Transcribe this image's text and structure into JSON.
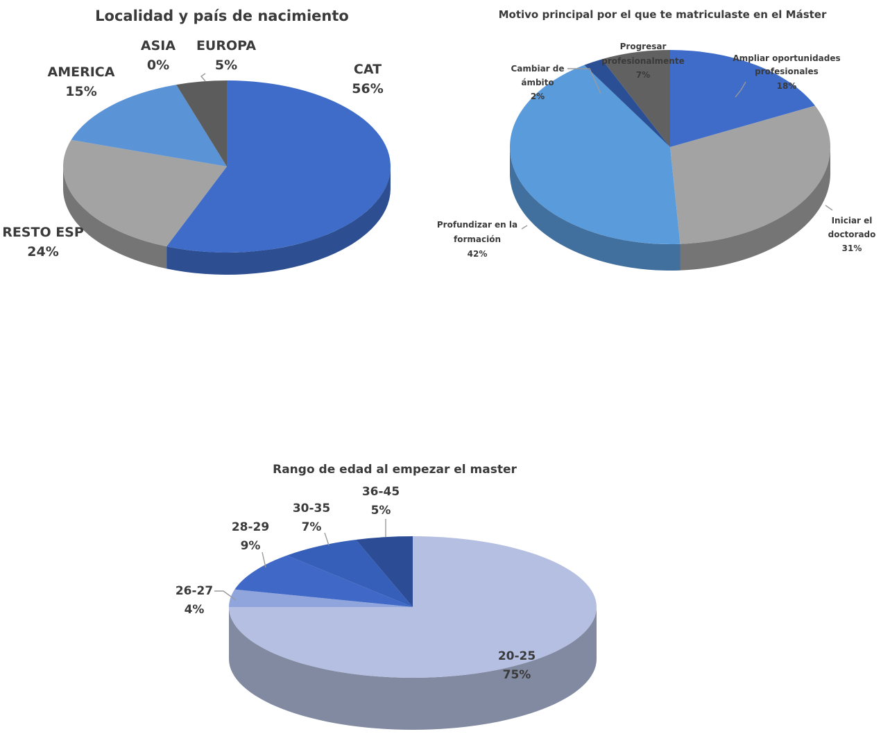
{
  "chart_data": [
    {
      "type": "pie",
      "title": "Localidad y país de nacimiento",
      "categories": [
        "CAT",
        "RESTO ESP",
        "AMERICA",
        "ASIA",
        "EUROPA"
      ],
      "values": [
        56,
        24,
        15,
        0,
        5
      ],
      "value_labels": [
        "56%",
        "24%",
        "15%",
        "0%",
        "5%"
      ],
      "colors": [
        "#3e6cc8",
        "#a3a3a3",
        "#5a93d6",
        "#7aa6dc",
        "#5c5c5c"
      ],
      "start_angle_deg": 90,
      "direction": "clockwise"
    },
    {
      "type": "pie",
      "title": "Motivo principal por el que te matriculaste en el Máster",
      "categories": [
        "Ampliar oportunidades profesionales",
        "Iniciar el doctorado",
        "Profundizar en la formación",
        "Cambiar de ámbito",
        "Progresar profesionalmente"
      ],
      "label_lines": [
        [
          "Ampliar oportunidades",
          "profesionales"
        ],
        [
          "Iniciar el",
          "doctorado"
        ],
        [
          "Profundizar en la",
          "formación"
        ],
        [
          "Cambiar de",
          "ámbito"
        ],
        [
          "Progresar",
          "profesionalmente"
        ]
      ],
      "values": [
        18,
        31,
        42,
        2,
        7
      ],
      "value_labels": [
        "18%",
        "31%",
        "42%",
        "2%",
        "7%"
      ],
      "colors": [
        "#3e6cc8",
        "#a3a3a3",
        "#5a9bdc",
        "#2a4f95",
        "#616161"
      ],
      "start_angle_deg": 90,
      "direction": "clockwise"
    },
    {
      "type": "pie",
      "title": "Rango de edad al empezar el master",
      "categories": [
        "20-25",
        "26-27",
        "28-29",
        "30-35",
        "36-45"
      ],
      "values": [
        75,
        4,
        9,
        7,
        5
      ],
      "value_labels": [
        "75%",
        "4%",
        "9%",
        "7%",
        "5%"
      ],
      "colors": [
        "#b5bfe1",
        "#8fa5dc",
        "#3f68c7",
        "#355fb8",
        "#2c4c96"
      ],
      "start_angle_deg": 90,
      "direction": "clockwise"
    }
  ]
}
